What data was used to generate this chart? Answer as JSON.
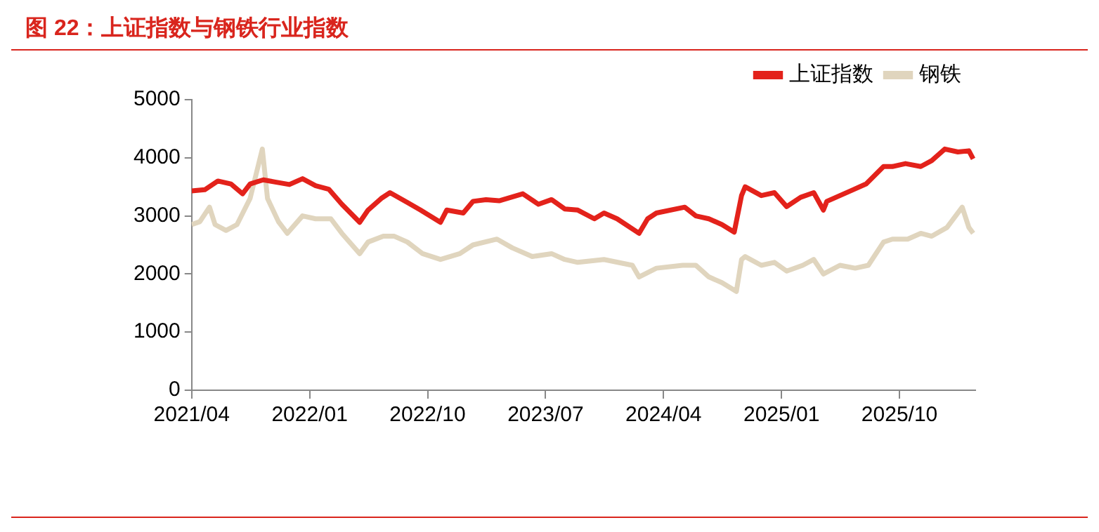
{
  "chart_data": {
    "type": "line",
    "title": "图 22：上证指数与钢铁行业指数",
    "xlim": [
      "2021-04-01",
      "2026-03-25"
    ],
    "xticks": [
      {
        "value": "2021-04-01",
        "label": "2021/04"
      },
      {
        "value": "2022-01-01",
        "label": "2022/01"
      },
      {
        "value": "2022-10-01",
        "label": "2022/10"
      },
      {
        "value": "2023-07-01",
        "label": "2023/07"
      },
      {
        "value": "2024-04-01",
        "label": "2024/04"
      },
      {
        "value": "2025-01-01",
        "label": "2025/01"
      },
      {
        "value": "2025-10-01",
        "label": "2025/10"
      }
    ],
    "ylim": [
      0,
      5000
    ],
    "yticks": [
      0,
      1000,
      2000,
      3000,
      4000,
      5000
    ],
    "grid": false,
    "legend": "top",
    "marker": "none",
    "line_style": "solid",
    "series": [
      {
        "name": "上证指数",
        "color": "#e3221b",
        "x": [
          "2021-04-01",
          "2021-05-01",
          "2021-06-01",
          "2021-07-01",
          "2021-07-28",
          "2021-08-15",
          "2021-09-15",
          "2021-10-15",
          "2021-11-15",
          "2021-12-15",
          "2022-01-15",
          "2022-02-15",
          "2022-03-15",
          "2022-04-26",
          "2022-05-15",
          "2022-06-15",
          "2022-07-05",
          "2022-08-15",
          "2022-09-15",
          "2022-10-31",
          "2022-11-15",
          "2022-12-23",
          "2023-01-15",
          "2023-02-15",
          "2023-03-15",
          "2023-05-09",
          "2023-06-15",
          "2023-07-15",
          "2023-08-15",
          "2023-09-15",
          "2023-10-23",
          "2023-11-15",
          "2023-12-15",
          "2024-02-05",
          "2024-02-25",
          "2024-03-15",
          "2024-05-20",
          "2024-06-15",
          "2024-07-15",
          "2024-08-15",
          "2024-09-13",
          "2024-09-30",
          "2024-10-08",
          "2024-11-15",
          "2024-12-15",
          "2025-01-13",
          "2025-02-15",
          "2025-03-15",
          "2025-04-07",
          "2025-04-15",
          "2025-05-15",
          "2025-06-15",
          "2025-07-15",
          "2025-08-25",
          "2025-09-15",
          "2025-10-15",
          "2025-11-20",
          "2025-12-15",
          "2026-01-15",
          "2026-02-15",
          "2026-03-10",
          "2026-03-20"
        ],
        "values": [
          3430,
          3450,
          3600,
          3550,
          3380,
          3550,
          3620,
          3580,
          3540,
          3640,
          3520,
          3460,
          3200,
          2890,
          3100,
          3300,
          3400,
          3230,
          3100,
          2890,
          3100,
          3050,
          3250,
          3280,
          3260,
          3380,
          3200,
          3280,
          3120,
          3100,
          2950,
          3050,
          2950,
          2700,
          2950,
          3050,
          3150,
          3000,
          2950,
          2850,
          2720,
          3350,
          3500,
          3350,
          3400,
          3160,
          3320,
          3400,
          3100,
          3250,
          3350,
          3450,
          3550,
          3850,
          3850,
          3900,
          3850,
          3950,
          4150,
          4100,
          4120,
          3980
        ]
      },
      {
        "name": "钢铁",
        "color": "#e0d5be",
        "x": [
          "2021-04-01",
          "2021-04-20",
          "2021-05-12",
          "2021-05-25",
          "2021-06-20",
          "2021-07-15",
          "2021-08-15",
          "2021-09-13",
          "2021-09-25",
          "2021-10-20",
          "2021-11-10",
          "2021-12-15",
          "2022-01-15",
          "2022-02-20",
          "2022-03-15",
          "2022-04-26",
          "2022-05-15",
          "2022-06-20",
          "2022-07-15",
          "2022-08-15",
          "2022-09-20",
          "2022-10-31",
          "2022-12-15",
          "2023-01-15",
          "2023-03-10",
          "2023-04-15",
          "2023-05-31",
          "2023-07-15",
          "2023-08-15",
          "2023-09-15",
          "2023-11-15",
          "2024-01-20",
          "2024-02-05",
          "2024-03-15",
          "2024-05-15",
          "2024-06-15",
          "2024-07-15",
          "2024-08-15",
          "2024-09-18",
          "2024-09-30",
          "2024-10-08",
          "2024-11-15",
          "2024-12-15",
          "2025-01-13",
          "2025-02-20",
          "2025-03-15",
          "2025-04-07",
          "2025-05-15",
          "2025-06-20",
          "2025-07-20",
          "2025-08-25",
          "2025-09-15",
          "2025-10-20",
          "2025-11-20",
          "2025-12-15",
          "2026-01-20",
          "2026-02-25",
          "2026-03-10",
          "2026-03-20"
        ],
        "values": [
          2850,
          2900,
          3150,
          2850,
          2750,
          2850,
          3300,
          4150,
          3300,
          2900,
          2700,
          3000,
          2950,
          2950,
          2700,
          2350,
          2550,
          2650,
          2650,
          2550,
          2350,
          2250,
          2350,
          2500,
          2600,
          2450,
          2300,
          2350,
          2250,
          2200,
          2250,
          2150,
          1950,
          2100,
          2150,
          2150,
          1950,
          1850,
          1700,
          2250,
          2300,
          2150,
          2200,
          2050,
          2150,
          2250,
          2000,
          2150,
          2100,
          2150,
          2550,
          2600,
          2600,
          2700,
          2650,
          2800,
          3150,
          2800,
          2700
        ]
      }
    ]
  }
}
